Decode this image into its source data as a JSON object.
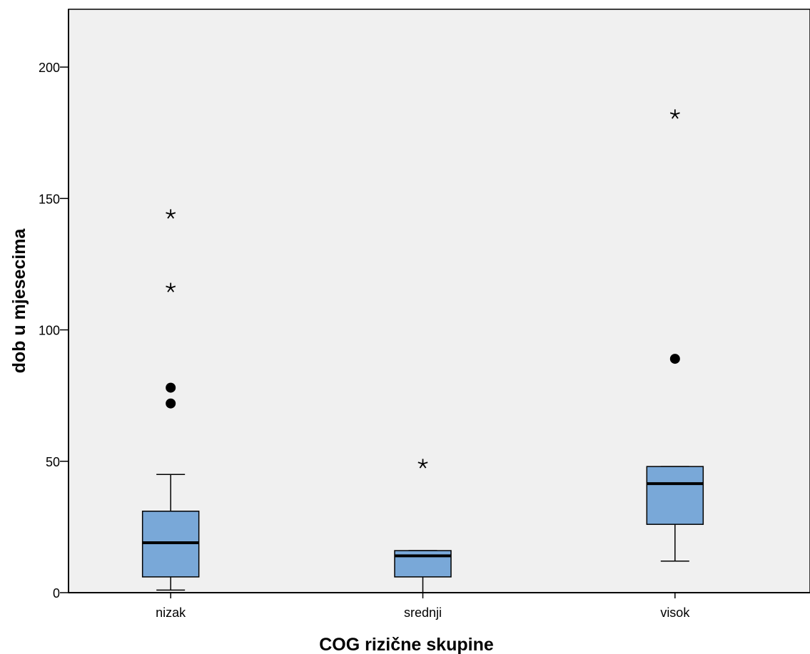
{
  "chart_data": {
    "type": "boxplot",
    "xlabel": "COG rizične skupine",
    "ylabel": "dob u mjesecima",
    "ylim": [
      0,
      222
    ],
    "yticks": [
      0,
      50,
      100,
      150,
      200
    ],
    "grid": false,
    "categories": [
      "nizak",
      "srednji",
      "visok"
    ],
    "boxes": [
      {
        "category": "nizak",
        "whisker_low": 1,
        "q1": 6,
        "median": 19,
        "q3": 31,
        "whisker_high": 45,
        "outliers": [
          72,
          78
        ],
        "extremes": [
          116,
          144
        ]
      },
      {
        "category": "srednji",
        "whisker_low": 0,
        "q1": 6,
        "median": 14,
        "q3": 16,
        "whisker_high": 16,
        "outliers": [],
        "extremes": [
          49
        ]
      },
      {
        "category": "visok",
        "whisker_low": 12,
        "q1": 26,
        "median": 41.5,
        "q3": 48,
        "whisker_high": 48,
        "outliers": [
          89
        ],
        "extremes": [
          182
        ]
      }
    ],
    "colors": {
      "plot_background": "#f0f0f0",
      "box_fill": "#79a8d8",
      "stroke": "#000000"
    }
  }
}
